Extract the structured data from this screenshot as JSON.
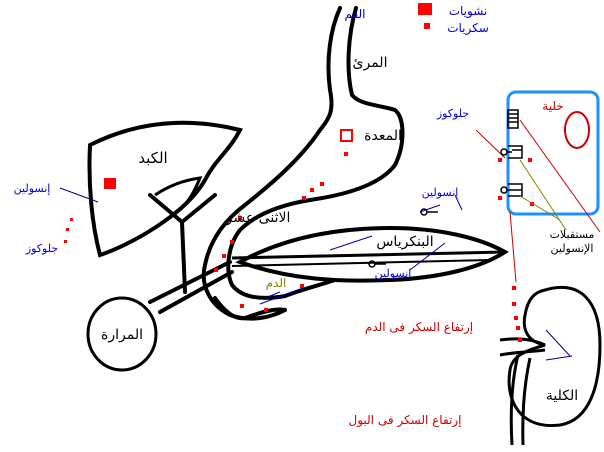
{
  "labels": {
    "mouth": "الفم",
    "esophagus": "المرئ",
    "stomach": "المعدة",
    "liver": "الكبد",
    "duodenum": "الاثنى عشر",
    "pancreas": "البنكرياس",
    "gallbladder": "المرارة",
    "kidney": "الكلية",
    "cell": "خلية",
    "blood": "الدم"
  },
  "legend": {
    "starch": "نشويات",
    "sugars": "سكريات",
    "starch_color": "#ff0000",
    "sugars_color": "#ff0000"
  },
  "annotations": {
    "insulin_liver": "إنسولين",
    "glucose_liver": "جلوكوز",
    "glucose_cell": "جلوكوز",
    "insulin_cell": "إنسولين",
    "insulin_pancreas": "إنسولين",
    "insulin_receptors_1": "مستقبلات",
    "insulin_receptors_2": "الإنسولين",
    "blood_sugar_rise": "إرتفاع السكر فى الدم",
    "urine_sugar_rise": "إرتفاع السكر فى البول"
  },
  "colors": {
    "organ_label": "#000000",
    "blue_label": "#0000cc",
    "red_label": "#cc0000",
    "blood_label": "#808000",
    "cell_border": "#1e90ff",
    "dots": "#ff0000"
  }
}
